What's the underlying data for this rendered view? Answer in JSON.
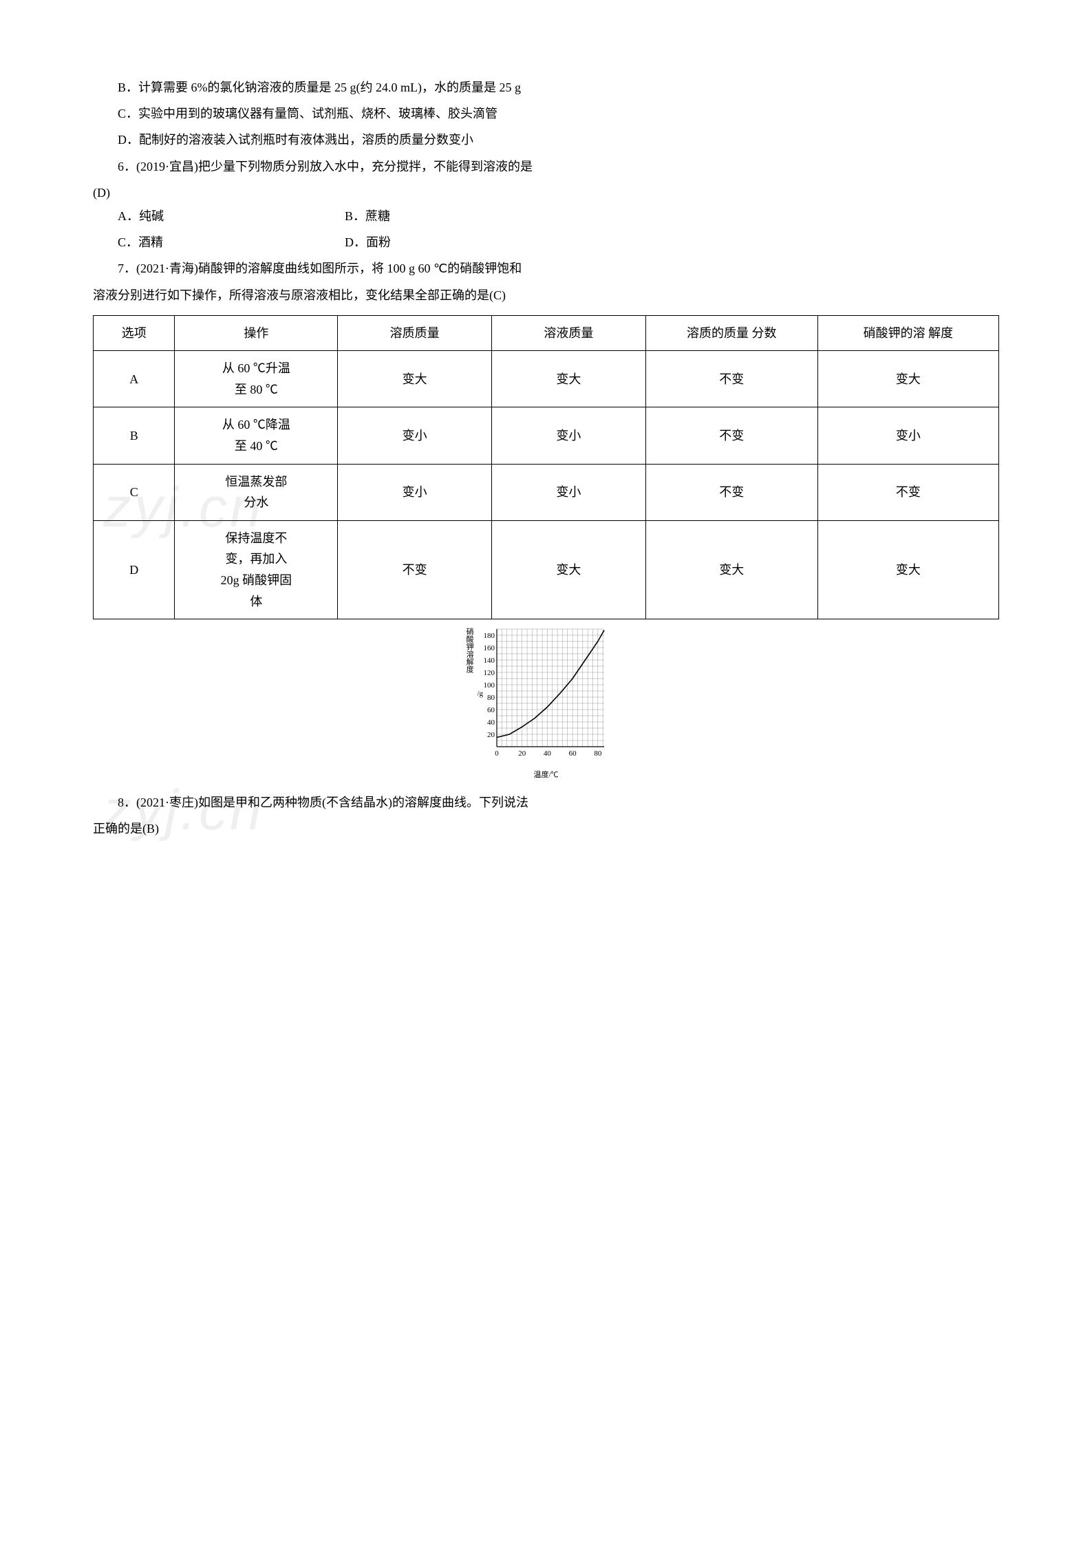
{
  "q5": {
    "optB": "B．计算需要 6%的氯化钠溶液的质量是 25 g(约 24.0 mL)，水的质量是 25 g",
    "optC": "C．实验中用到的玻璃仪器有量筒、试剂瓶、烧杯、玻璃棒、胶头滴管",
    "optD": "D．配制好的溶液装入试剂瓶时有液体溅出，溶质的质量分数变小"
  },
  "q6": {
    "stem": "6．(2019·宜昌)把少量下列物质分别放入水中，充分搅拌，不能得到溶液的是",
    "answer": "(D)",
    "A": "A．纯碱",
    "B": "B．蔗糖",
    "C": "C．酒精",
    "D": "D．面粉"
  },
  "q7": {
    "stem1": "7．(2021·青海)硝酸钾的溶解度曲线如图所示，将 100 g 60 ℃的硝酸钾饱和",
    "stem2": "溶液分别进行如下操作，所得溶液与原溶液相比，变化结果全部正确的是(C)",
    "headers": [
      "选项",
      "操作",
      "溶质质量",
      "溶液质量",
      "溶质的质量\n分数",
      "硝酸钾的溶\n解度"
    ],
    "rows": [
      [
        "A",
        "从 60 ℃升温\n至 80 ℃",
        "变大",
        "变大",
        "不变",
        "变大"
      ],
      [
        "B",
        "从 60 ℃降温\n至 40 ℃",
        "变小",
        "变小",
        "不变",
        "变小"
      ],
      [
        "C",
        "恒温蒸发部\n分水",
        "变小",
        "变小",
        "不变",
        "不变"
      ],
      [
        "D",
        "保持温度不\n变，再加入\n20g 硝酸钾固\n体",
        "不变",
        "变大",
        "变大",
        "变大"
      ]
    ],
    "chart": {
      "type": "line",
      "y_label": "硝酸钾溶解度",
      "y_unit": "/g",
      "x_label": "温度/℃",
      "xlim": [
        0,
        85
      ],
      "ylim": [
        0,
        190
      ],
      "xtick_step": 20,
      "xtick_labels": [
        "0",
        "20",
        "40",
        "60",
        "80"
      ],
      "ytick_step": 20,
      "ytick_labels": [
        "20",
        "40",
        "60",
        "80",
        "100",
        "120",
        "140",
        "160",
        "180"
      ],
      "minor_grid_step_x": 4,
      "minor_grid_step_y": 10,
      "points": [
        {
          "x": 0,
          "y": 15
        },
        {
          "x": 10,
          "y": 20
        },
        {
          "x": 20,
          "y": 32
        },
        {
          "x": 30,
          "y": 46
        },
        {
          "x": 40,
          "y": 64
        },
        {
          "x": 50,
          "y": 86
        },
        {
          "x": 60,
          "y": 110
        },
        {
          "x": 70,
          "y": 140
        },
        {
          "x": 80,
          "y": 170
        },
        {
          "x": 85,
          "y": 188
        }
      ],
      "line_color": "#000000",
      "line_width": 1.6,
      "grid_color": "#808080",
      "axis_color": "#000000",
      "background_color": "#ffffff",
      "fontsize": 11
    }
  },
  "q8": {
    "stem1": "8．(2021·枣庄)如图是甲和乙两种物质(不含结晶水)的溶解度曲线。下列说法",
    "stem2": "正确的是(B)"
  },
  "watermark_text": "zyj.cn"
}
